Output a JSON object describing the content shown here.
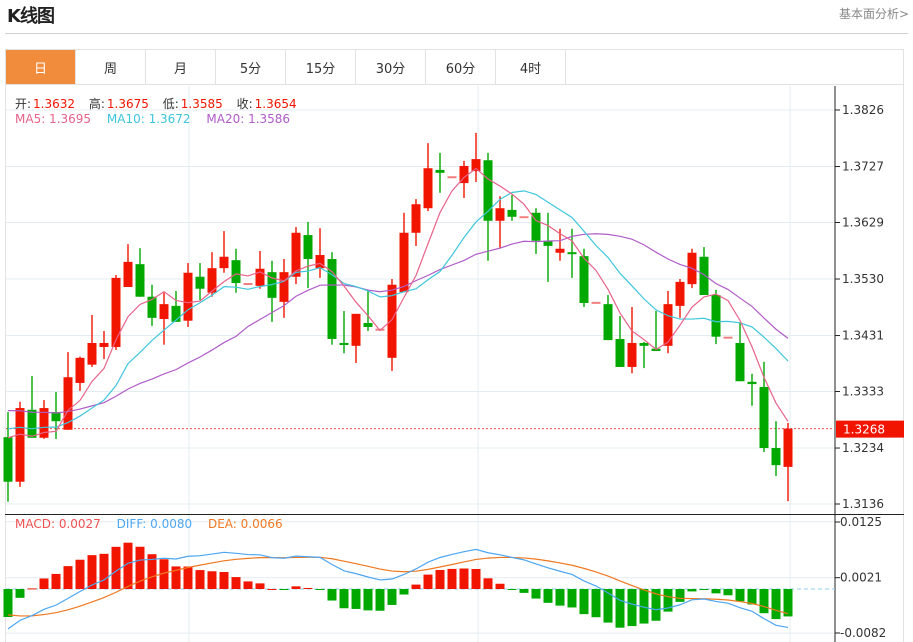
{
  "header": {
    "title": "K线图",
    "link": "基本面分析>"
  },
  "tabs": [
    {
      "label": "日",
      "active": true
    },
    {
      "label": "周"
    },
    {
      "label": "月"
    },
    {
      "label": "5分"
    },
    {
      "label": "15分"
    },
    {
      "label": "30分"
    },
    {
      "label": "60分"
    },
    {
      "label": "4时"
    }
  ],
  "ohlc_legend": {
    "open_label": "开:",
    "open": "1.3632",
    "high_label": "高:",
    "high": "1.3675",
    "low_label": "低:",
    "low": "1.3585",
    "close_label": "收:",
    "close": "1.3654"
  },
  "ma_legend": {
    "ma5": "MA5: 1.3695",
    "ma10": "MA10: 1.3672",
    "ma20": "MA20: 1.3586"
  },
  "macd_legend": {
    "macd": "MACD: 0.0027",
    "diff": "DIFF: 0.0080",
    "dea": "DEA: 0.0066"
  },
  "last_price": "1.3268",
  "colors": {
    "up": "#f11500",
    "down": "#00a800",
    "flat": "#f08080",
    "ma5": "#e8628a",
    "ma10": "#3ec6dc",
    "ma20": "#b05cc8",
    "diff": "#4da6f0",
    "dea": "#f07820",
    "accent": "#f08c3c"
  },
  "chart_data": {
    "type": "candlestick",
    "title": "K线图",
    "y_ticks": [
      "1.3826",
      "1.3727",
      "1.3629",
      "1.3530",
      "1.3431",
      "1.3333",
      "1.3234",
      "1.3136"
    ],
    "ylim": [
      1.3136,
      1.3826
    ],
    "macd_ticks": [
      "0.0125",
      "0.0021",
      "-0.0082"
    ],
    "macd_ylim": [
      -0.0082,
      0.0125
    ],
    "candles": [
      [
        1.3253,
        1.3297,
        1.314,
        1.3175
      ],
      [
        1.3175,
        1.3315,
        1.3166,
        1.3304
      ],
      [
        1.3301,
        1.336,
        1.3252,
        1.3252
      ],
      [
        1.3252,
        1.3318,
        1.325,
        1.3304
      ],
      [
        1.3297,
        1.3332,
        1.325,
        1.3281
      ],
      [
        1.3266,
        1.3402,
        1.3266,
        1.3358
      ],
      [
        1.3348,
        1.3394,
        1.3334,
        1.3392
      ],
      [
        1.338,
        1.3467,
        1.3376,
        1.3418
      ],
      [
        1.3411,
        1.3439,
        1.339,
        1.3418
      ],
      [
        1.3411,
        1.3537,
        1.3406,
        1.3532
      ],
      [
        1.3516,
        1.3591,
        1.3516,
        1.356
      ],
      [
        1.3556,
        1.3584,
        1.3499,
        1.3499
      ],
      [
        1.3499,
        1.352,
        1.3448,
        1.3462
      ],
      [
        1.346,
        1.3506,
        1.3415,
        1.3486
      ],
      [
        1.3483,
        1.3509,
        1.3455,
        1.3455
      ],
      [
        1.3457,
        1.3558,
        1.3446,
        1.3541
      ],
      [
        1.3534,
        1.3558,
        1.3493,
        1.3513
      ],
      [
        1.3506,
        1.3577,
        1.3499,
        1.3549
      ],
      [
        1.3549,
        1.3614,
        1.3541,
        1.3569
      ],
      [
        1.3563,
        1.3583,
        1.3506,
        1.3523
      ],
      [
        1.3523,
        1.3523,
        1.3523,
        1.3523
      ],
      [
        1.3518,
        1.3579,
        1.3513,
        1.3548
      ],
      [
        1.3542,
        1.3562,
        1.3455,
        1.3497
      ],
      [
        1.349,
        1.3565,
        1.3462,
        1.3542
      ],
      [
        1.3534,
        1.3621,
        1.3521,
        1.3611
      ],
      [
        1.3607,
        1.363,
        1.3514,
        1.3565
      ],
      [
        1.3549,
        1.3619,
        1.3532,
        1.3572
      ],
      [
        1.3565,
        1.3577,
        1.3415,
        1.3425
      ],
      [
        1.3418,
        1.3474,
        1.34,
        1.3416
      ],
      [
        1.3413,
        1.3469,
        1.3383,
        1.3469
      ],
      [
        1.3453,
        1.3511,
        1.3439,
        1.3446
      ],
      [
        1.3443,
        1.3443,
        1.3443,
        1.3443
      ],
      [
        1.3392,
        1.353,
        1.3369,
        1.352
      ],
      [
        1.3507,
        1.3646,
        1.3507,
        1.3611
      ],
      [
        1.3611,
        1.367,
        1.3588,
        1.3661
      ],
      [
        1.3654,
        1.3768,
        1.3649,
        1.3724
      ],
      [
        1.3721,
        1.3751,
        1.3681,
        1.3716
      ],
      [
        1.371,
        1.371,
        1.371,
        1.371
      ],
      [
        1.3698,
        1.3737,
        1.3672,
        1.3728
      ],
      [
        1.3719,
        1.3786,
        1.37,
        1.374
      ],
      [
        1.3738,
        1.3751,
        1.3562,
        1.3632
      ],
      [
        1.3632,
        1.3675,
        1.3585,
        1.3654
      ],
      [
        1.3651,
        1.3677,
        1.3632,
        1.3639
      ],
      [
        1.364,
        1.364,
        1.364,
        1.364
      ],
      [
        1.3646,
        1.3654,
        1.3574,
        1.3597
      ],
      [
        1.3597,
        1.3646,
        1.3525,
        1.3588
      ],
      [
        1.3576,
        1.3618,
        1.3562,
        1.3583
      ],
      [
        1.3577,
        1.3618,
        1.3532,
        1.3576
      ],
      [
        1.357,
        1.3583,
        1.3481,
        1.3488
      ],
      [
        1.349,
        1.349,
        1.349,
        1.349
      ],
      [
        1.3486,
        1.3502,
        1.3423,
        1.3423
      ],
      [
        1.3425,
        1.3465,
        1.3376,
        1.3376
      ],
      [
        1.3376,
        1.3481,
        1.3365,
        1.3418
      ],
      [
        1.3418,
        1.342,
        1.3374,
        1.3413
      ],
      [
        1.3408,
        1.3474,
        1.3404,
        1.3404
      ],
      [
        1.3413,
        1.3509,
        1.34,
        1.3486
      ],
      [
        1.3483,
        1.353,
        1.3462,
        1.3525
      ],
      [
        1.3521,
        1.3583,
        1.3514,
        1.3576
      ],
      [
        1.3569,
        1.3586,
        1.3502,
        1.3502
      ],
      [
        1.3502,
        1.3511,
        1.3416,
        1.3429
      ],
      [
        1.3429,
        1.3429,
        1.3429,
        1.3429
      ],
      [
        1.3418,
        1.3453,
        1.3351,
        1.3351
      ],
      [
        1.335,
        1.3364,
        1.3308,
        1.3346
      ],
      [
        1.3341,
        1.3385,
        1.3227,
        1.3234
      ],
      [
        1.3234,
        1.3281,
        1.3185,
        1.3204
      ],
      [
        1.3201,
        1.3278,
        1.3141,
        1.3268
      ]
    ]
  }
}
